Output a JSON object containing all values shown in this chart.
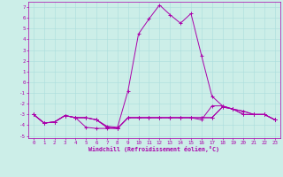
{
  "xlabel": "Windchill (Refroidissement éolien,°C)",
  "xlim": [
    -0.5,
    23.5
  ],
  "ylim": [
    -5.2,
    7.5
  ],
  "xticks": [
    0,
    1,
    2,
    3,
    4,
    5,
    6,
    7,
    8,
    9,
    10,
    11,
    12,
    13,
    14,
    15,
    16,
    17,
    18,
    19,
    20,
    21,
    22,
    23
  ],
  "yticks": [
    -5,
    -4,
    -3,
    -2,
    -1,
    0,
    1,
    2,
    3,
    4,
    5,
    6,
    7
  ],
  "bg_color": "#cceee8",
  "grid_color": "#aadddd",
  "line_color": "#aa00aa",
  "lines": [
    {
      "x": [
        0,
        1,
        2,
        3,
        4,
        5,
        6,
        7,
        8,
        9,
        10,
        11,
        12,
        13,
        14,
        15,
        16,
        17,
        18,
        19,
        20,
        21,
        22,
        23
      ],
      "y": [
        -3.0,
        -3.8,
        -3.7,
        -3.1,
        -3.3,
        -3.3,
        -3.5,
        -4.2,
        -4.3,
        -3.3,
        -3.3,
        -3.3,
        -3.3,
        -3.3,
        -3.3,
        -3.3,
        -3.3,
        -3.3,
        -2.3,
        -2.5,
        -3.0,
        -3.0,
        -3.0,
        -3.5
      ]
    },
    {
      "x": [
        0,
        1,
        2,
        3,
        4,
        5,
        6,
        7,
        8,
        9,
        10,
        11,
        12,
        13,
        14,
        15,
        16,
        17,
        18,
        19,
        20,
        21,
        22,
        23
      ],
      "y": [
        -3.0,
        -3.8,
        -3.7,
        -3.1,
        -3.3,
        -3.3,
        -3.5,
        -4.2,
        -4.3,
        -3.3,
        -3.3,
        -3.3,
        -3.3,
        -3.3,
        -3.3,
        -3.3,
        -3.5,
        -2.2,
        -2.2,
        -2.5,
        -2.7,
        -3.0,
        -3.0,
        -3.5
      ]
    },
    {
      "x": [
        0,
        1,
        2,
        3,
        4,
        5,
        6,
        7,
        8,
        9,
        10,
        11,
        12,
        13,
        14,
        15,
        16,
        17,
        18,
        19,
        20,
        21,
        22,
        23
      ],
      "y": [
        -3.0,
        -3.8,
        -3.7,
        -3.1,
        -3.3,
        -4.2,
        -4.3,
        -4.3,
        -4.3,
        -3.3,
        -3.3,
        -3.3,
        -3.3,
        -3.3,
        -3.3,
        -3.3,
        -3.3,
        -3.3,
        -2.3,
        -2.5,
        -3.0,
        -3.0,
        -3.0,
        -3.5
      ]
    },
    {
      "x": [
        0,
        1,
        2,
        3,
        4,
        5,
        6,
        7,
        8,
        9,
        10,
        11,
        12,
        13,
        14,
        15,
        16,
        17,
        18,
        19,
        20,
        21,
        22,
        23
      ],
      "y": [
        -3.0,
        -3.8,
        -3.7,
        -3.1,
        -3.3,
        -3.3,
        -3.5,
        -4.1,
        -4.2,
        -0.8,
        4.5,
        5.9,
        7.2,
        6.3,
        5.5,
        6.4,
        2.5,
        -1.3,
        -2.2,
        -2.5,
        -2.7,
        -3.0,
        -3.0,
        -3.5
      ]
    }
  ]
}
